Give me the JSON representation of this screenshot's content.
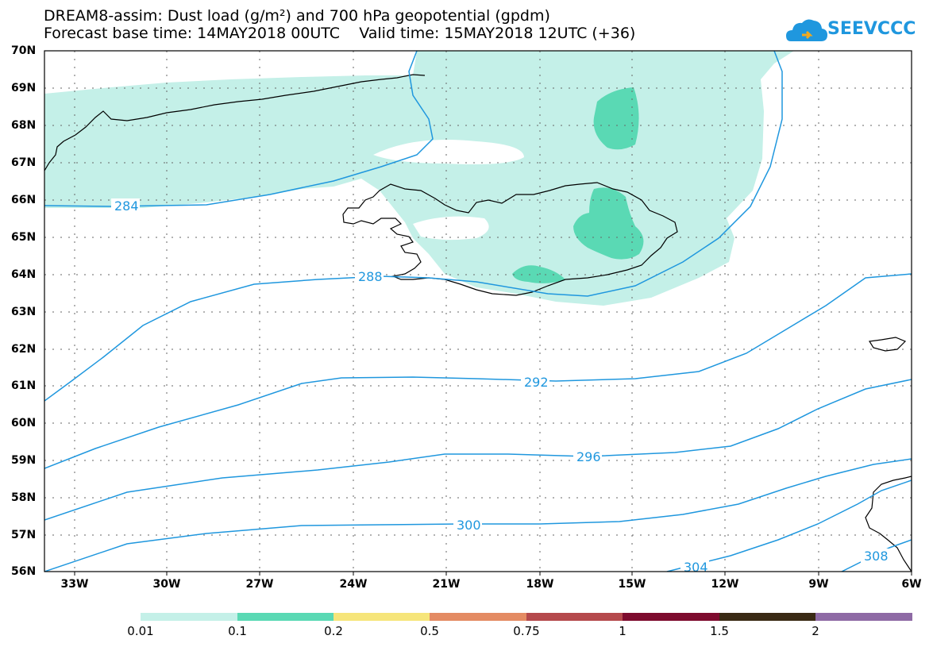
{
  "header": {
    "title_line1": "DREAM8-assim: Dust load (g/m²) and 700 hPa geopotential (gpdm)",
    "title_line2": "Forecast base time: 14MAY2018 00UTC    Valid time: 15MAY2018 12UTC (+36)"
  },
  "logo": {
    "text": "SEEVCCC"
  },
  "axes": {
    "lat_labels": [
      "70N",
      "69N",
      "68N",
      "67N",
      "66N",
      "65N",
      "64N",
      "63N",
      "62N",
      "61N",
      "60N",
      "59N",
      "58N",
      "57N",
      "56N"
    ],
    "lon_labels": [
      "33W",
      "30W",
      "27W",
      "24W",
      "21W",
      "18W",
      "15W",
      "12W",
      "9W",
      "6W"
    ]
  },
  "contours": {
    "labels": [
      "284",
      "288",
      "292",
      "296",
      "300",
      "304",
      "308"
    ]
  },
  "colorbar": {
    "ticks": [
      "0.01",
      "0.1",
      "0.2",
      "0.5",
      "0.75",
      "1",
      "1.5",
      "2"
    ],
    "colors": [
      "#c4f0e8",
      "#5ad9b4",
      "#f6e57a",
      "#e48b63",
      "#b5494c",
      "#7e0b2e",
      "#3a2a14",
      "#8e6aa5"
    ]
  },
  "colors": {
    "contour": "#1f97de",
    "dust_low": "#c4f0e8",
    "dust_mid": "#5ad9b4",
    "coast": "#000000"
  }
}
